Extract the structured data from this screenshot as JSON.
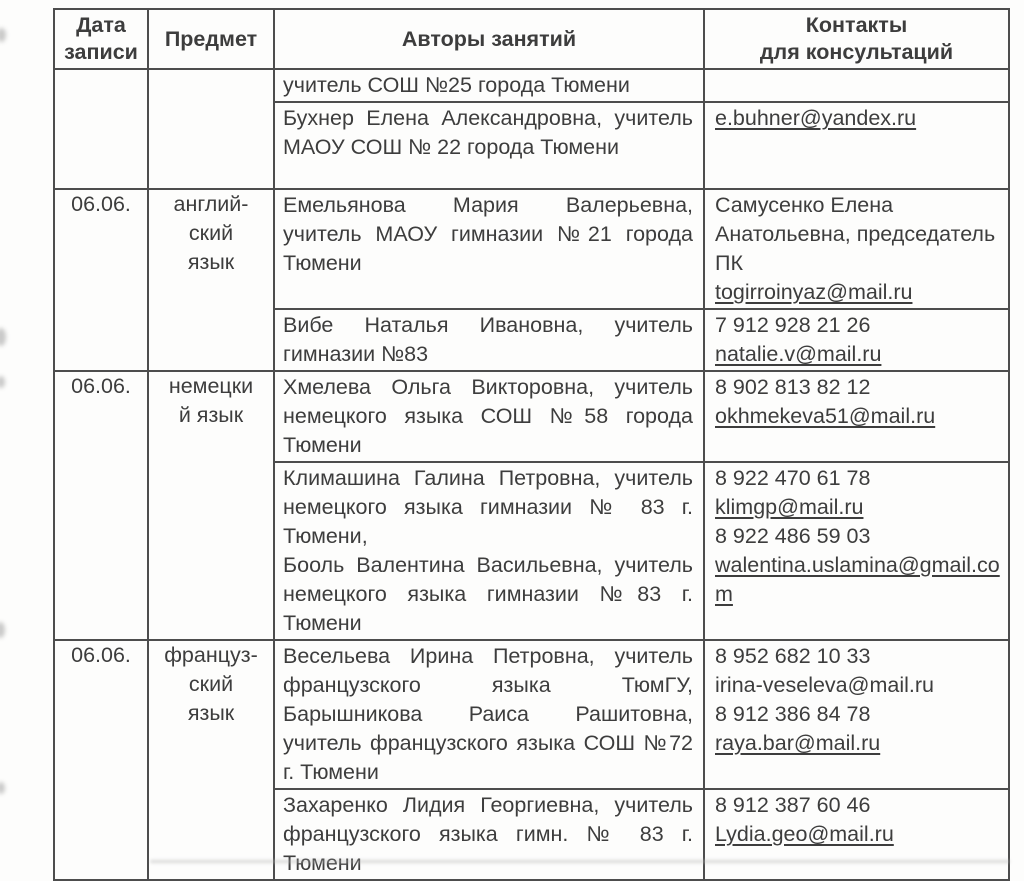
{
  "table": {
    "headers": {
      "date": "Дата\nзаписи",
      "subject": "Предмет",
      "authors": "Авторы занятий",
      "contacts": "Контакты\nдля консультаций"
    },
    "groups": [
      {
        "date": "",
        "subject": "",
        "rows": [
          {
            "authors": "учитель СОШ №25 города Тюмени",
            "contacts": []
          },
          {
            "authors": "Бухнер Елена Александровна, учитель МАОУ СОШ № 22 города Тюмени",
            "contacts": [
              {
                "text": "e.buhner@yandex.ru",
                "underline": true
              }
            ]
          }
        ]
      },
      {
        "date": "06.06.",
        "subject": "англий-\nский\nязык",
        "rows": [
          {
            "authors": "Емельянова Мария Валерьевна, учитель МАОУ гимназии №21 города Тюмени",
            "contacts": [
              {
                "text": "Самусенко Елена Анатольевна, председатель ПК",
                "underline": false
              },
              {
                "text": "togirroinyaz@mail.ru",
                "underline": true
              }
            ]
          },
          {
            "authors": "Вибе Наталья Ивановна, учитель гимназии №83",
            "contacts": [
              {
                "text": "7 912 928 21 26",
                "underline": false
              },
              {
                "text": "natalie.v@mail.ru",
                "underline": true
              }
            ]
          }
        ]
      },
      {
        "date": "06.06.",
        "subject": "немецки\nй язык",
        "rows": [
          {
            "authors": "Хмелева Ольга Викторовна, учитель немецкого языка СОШ №58 города Тюмени",
            "contacts": [
              {
                "text": "8 902 813 82 12",
                "underline": false
              },
              {
                "text": "okhmekeva51@mail.ru",
                "underline": true
              }
            ]
          },
          {
            "authors": "Климашина Галина Петровна, учитель немецкого языка гимназии № 83 г. Тюмени,\nБооль Валентина Васильевна, учитель немецкого языка гимназии №83 г. Тюмени",
            "contacts": [
              {
                "text": "8 922 470 61 78",
                "underline": false
              },
              {
                "text": "klimgp@mail.ru",
                "underline": true
              },
              {
                "text": "8 922 486 59 03",
                "underline": false
              },
              {
                "text": "walentina.uslamina@gmail.com",
                "underline": true
              }
            ]
          }
        ]
      },
      {
        "date": "06.06.",
        "subject": "француз-\nский\nязык",
        "rows": [
          {
            "authors": "Весельева Ирина Петровна, учитель французского языка ТюмГУ, Барышникова Раиса Рашитовна, учитель французского языка СОШ №72 г. Тюмени",
            "contacts": [
              {
                "text": "8 952 682 10 33",
                "underline": false
              },
              {
                "text": "irina-veseleva@mail.ru",
                "underline": false
              },
              {
                "text": "8 912 386 84 78",
                "underline": false
              },
              {
                "text": "raya.bar@mail.ru",
                "underline": true
              }
            ]
          },
          {
            "authors": "Захаренко Лидия Георгиевна, учитель французского языка гимн. № 83 г. Тюмени",
            "contacts": [
              {
                "text": "8 912 387 60 46",
                "underline": false
              },
              {
                "text": "Lydia.geo@mail.ru",
                "underline": true
              }
            ]
          }
        ]
      }
    ]
  },
  "colors": {
    "text": "#3d3d3d",
    "border": "#4d4d4d",
    "background": "#fdfdfc"
  }
}
